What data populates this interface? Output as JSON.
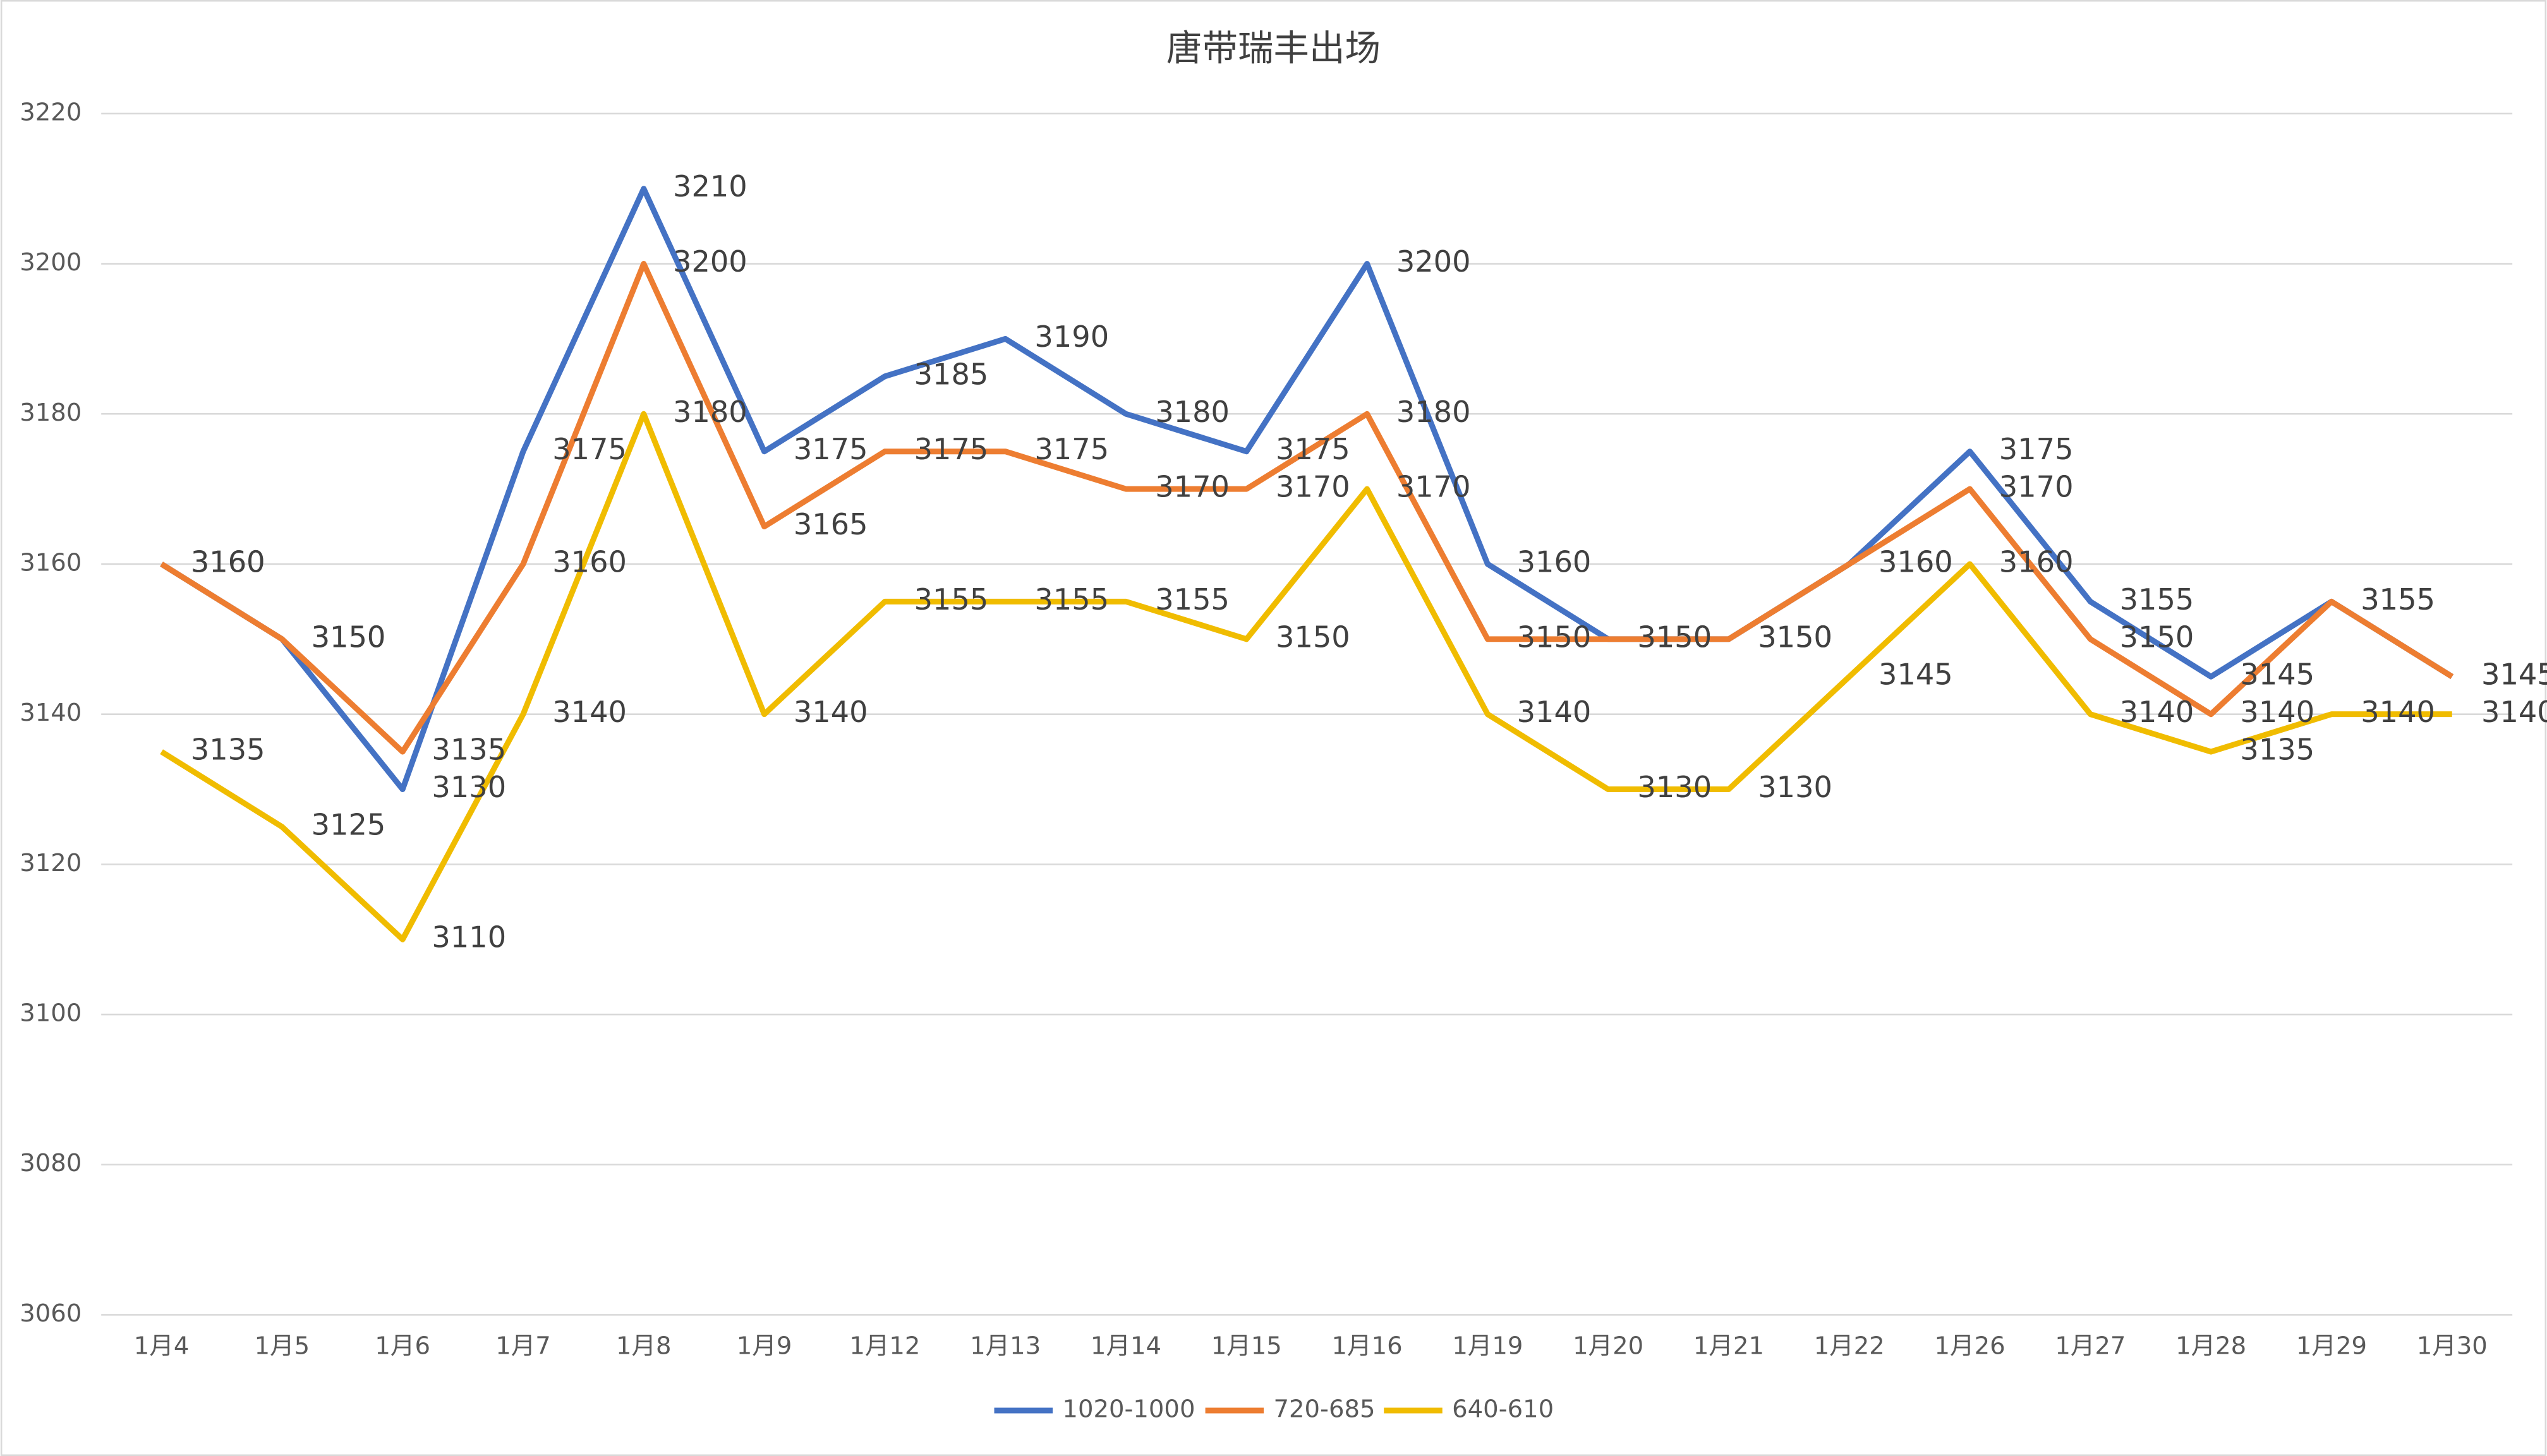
{
  "chart_data": {
    "type": "line",
    "title": "唐带瑞丰出场",
    "categories": [
      "1月4",
      "1月5",
      "1月6",
      "1月7",
      "1月8",
      "1月9",
      "1月12",
      "1月13",
      "1月14",
      "1月15",
      "1月16",
      "1月19",
      "1月20",
      "1月21",
      "1月22",
      "1月26",
      "1月27",
      "1月28",
      "1月29",
      "1月30"
    ],
    "series": [
      {
        "name": "1020-1000",
        "color": "#4472c4",
        "values": [
          3160,
          3150,
          3130,
          3175,
          3210,
          3175,
          3185,
          3190,
          3180,
          3175,
          3200,
          3160,
          3150,
          3150,
          3160,
          3175,
          3155,
          3145,
          3155,
          3145
        ]
      },
      {
        "name": "720-685",
        "color": "#ed7d31",
        "values": [
          3160,
          3150,
          3135,
          3160,
          3200,
          3165,
          3175,
          3175,
          3170,
          3170,
          3180,
          3150,
          3150,
          3150,
          3160,
          3170,
          3150,
          3140,
          3155,
          3145
        ]
      },
      {
        "name": "640-610",
        "color": "#f0bc00",
        "values": [
          3135,
          3125,
          3110,
          3140,
          3180,
          3140,
          3155,
          3155,
          3155,
          3150,
          3170,
          3140,
          3130,
          3130,
          3145,
          3160,
          3140,
          3135,
          3140,
          3140
        ]
      }
    ],
    "ylim": [
      3060,
      3220
    ],
    "yticks": [
      3060,
      3080,
      3100,
      3120,
      3140,
      3160,
      3180,
      3200,
      3220
    ],
    "grid": true,
    "legend": "bottom"
  }
}
